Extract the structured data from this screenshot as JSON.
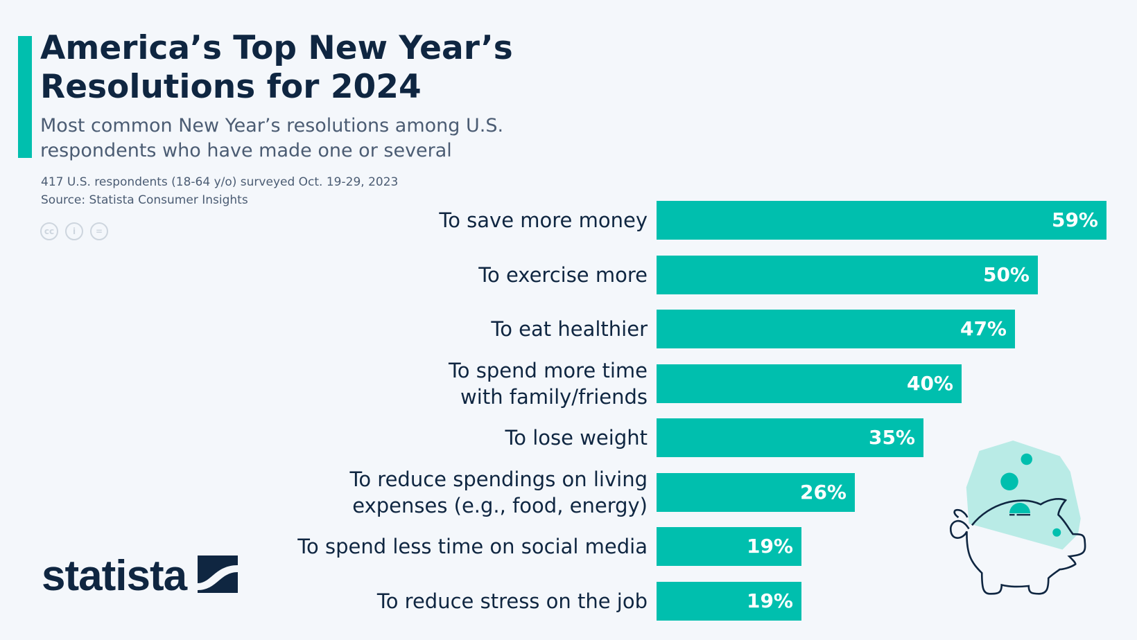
{
  "title": "America’s Top New Year’s Resolutions for 2024",
  "subtitle": "Most common New Year’s resolutions among U.S. respondents who have made one or several",
  "note": "417 U.S. respondents (18-64 y/o) surveyed Oct. 19-29, 2023",
  "source": "Source: Statista Consumer Insights",
  "license_icons": [
    "cc-icon",
    "attribution-icon",
    "no-derivatives-icon"
  ],
  "logo": "statista",
  "colors": {
    "bar": "#00bfae",
    "text": "#0f2641",
    "background": "#f4f7fb"
  },
  "chart_data": {
    "type": "bar",
    "orientation": "horizontal",
    "categories": [
      "To save more money",
      "To exercise more",
      "To eat healthier",
      "To spend more time with family/friends",
      "To lose weight",
      "To reduce spendings on living expenses (e.g., food, energy)",
      "To spend less time on social media",
      "To reduce stress on the job"
    ],
    "values": [
      59,
      50,
      47,
      40,
      35,
      26,
      19,
      19
    ],
    "value_labels": [
      "59%",
      "50%",
      "47%",
      "40%",
      "35%",
      "26%",
      "19%",
      "19%"
    ],
    "unit": "%",
    "grid": false
  }
}
